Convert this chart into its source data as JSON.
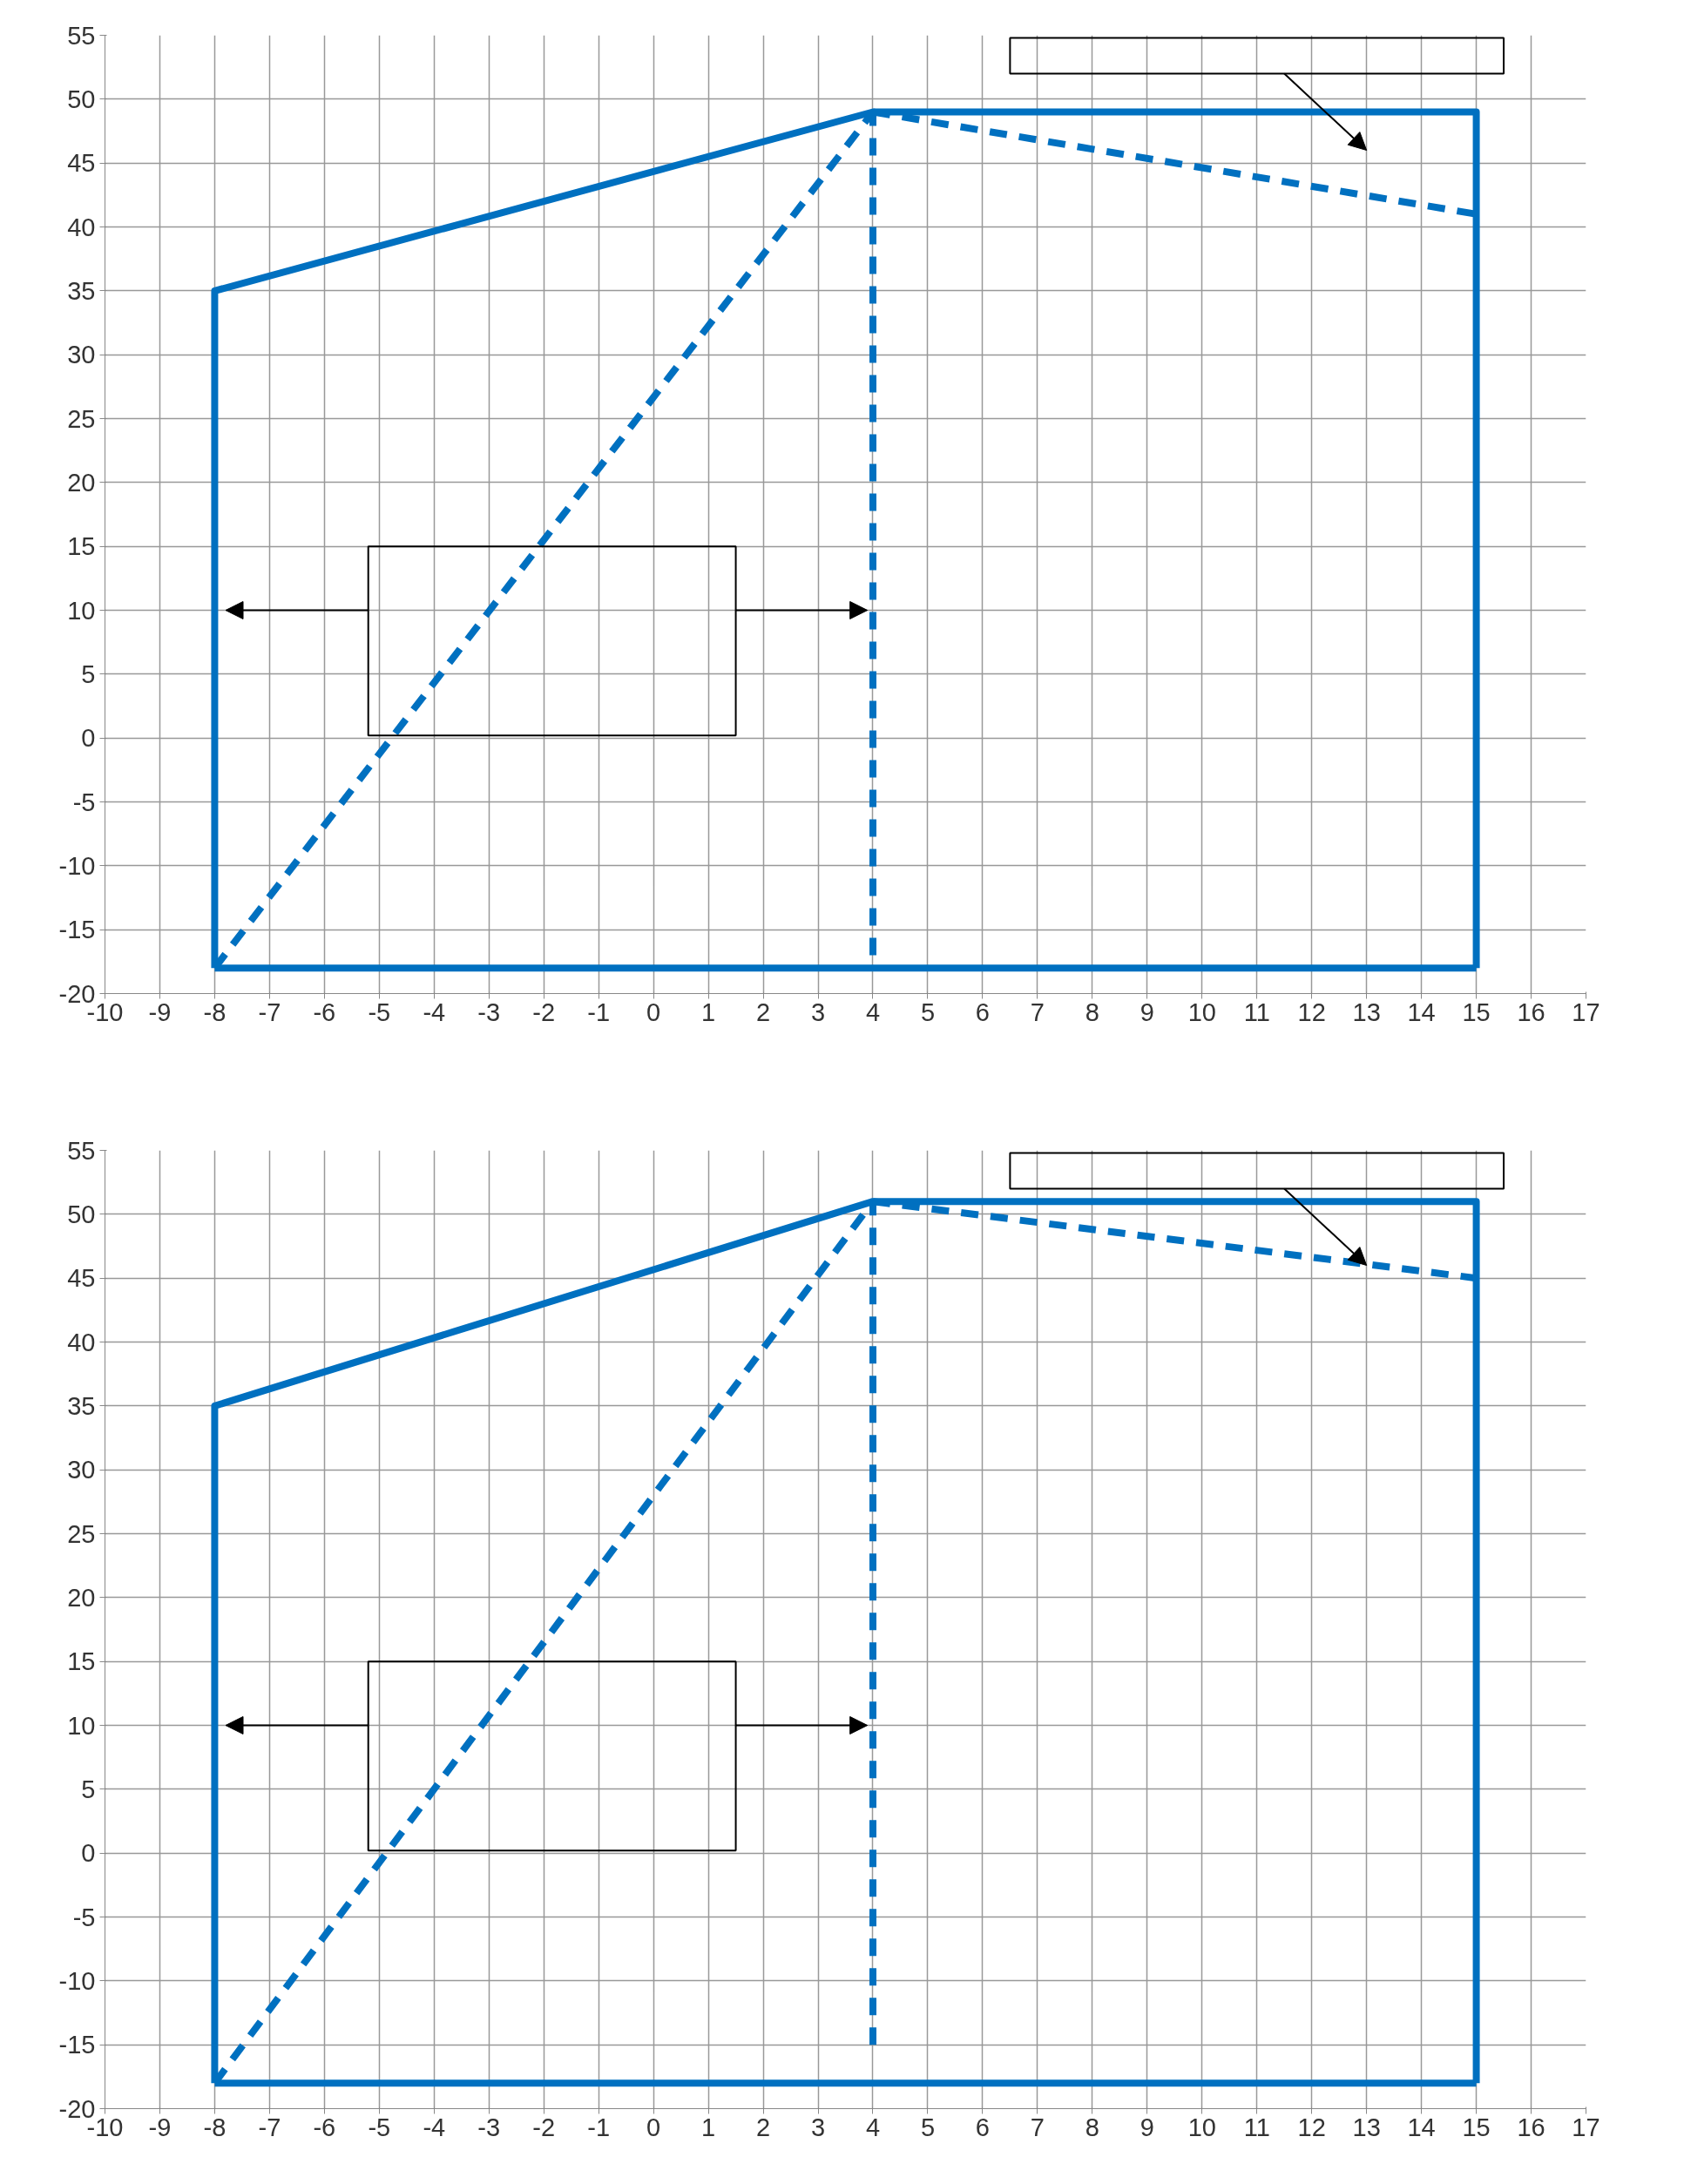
{
  "chart_data": [
    {
      "type": "line",
      "xlim": [
        -10,
        17
      ],
      "ylim": [
        -20,
        55
      ],
      "xticks": [
        -10,
        -9,
        -8,
        -7,
        -6,
        -5,
        -4,
        -3,
        -2,
        -1,
        0,
        1,
        2,
        3,
        4,
        5,
        6,
        7,
        8,
        9,
        10,
        11,
        12,
        13,
        14,
        15,
        16,
        17
      ],
      "yticks": [
        -20,
        -15,
        -10,
        -5,
        0,
        5,
        10,
        15,
        20,
        25,
        30,
        35,
        40,
        45,
        50,
        55
      ],
      "grid": true,
      "series": [
        {
          "color": "#0070c0",
          "line_style": "solid",
          "x": [
            -8,
            -8,
            4,
            15,
            15
          ],
          "values": [
            -18,
            35,
            49,
            49,
            -18
          ]
        },
        {
          "color": "#0070c0",
          "line_style": "solid",
          "x": [
            -8,
            15
          ],
          "values": [
            -18,
            -18
          ]
        },
        {
          "color": "#0070c0",
          "line_style": "dashed",
          "x": [
            -8,
            4
          ],
          "values": [
            -18,
            49
          ]
        },
        {
          "color": "#0070c0",
          "line_style": "dashed",
          "x": [
            4,
            4
          ],
          "values": [
            -17,
            49
          ]
        },
        {
          "color": "#0070c0",
          "line_style": "dashed",
          "x": [
            4,
            15
          ],
          "values": [
            49,
            41
          ]
        }
      ]
    },
    {
      "type": "line",
      "xlim": [
        -10,
        17
      ],
      "ylim": [
        -20,
        55
      ],
      "xticks": [
        -10,
        -9,
        -8,
        -7,
        -6,
        -5,
        -4,
        -3,
        -2,
        -1,
        0,
        1,
        2,
        3,
        4,
        5,
        6,
        7,
        8,
        9,
        10,
        11,
        12,
        13,
        14,
        15,
        16,
        17
      ],
      "yticks": [
        -20,
        -15,
        -10,
        -5,
        0,
        5,
        10,
        15,
        20,
        25,
        30,
        35,
        40,
        45,
        50,
        55
      ],
      "grid": true,
      "series": [
        {
          "color": "#0070c0",
          "line_style": "solid",
          "x": [
            -8,
            -8,
            4,
            15,
            15
          ],
          "values": [
            -18,
            35,
            51,
            51,
            -18
          ]
        },
        {
          "color": "#0070c0",
          "line_style": "solid",
          "x": [
            -8,
            15
          ],
          "values": [
            -18,
            -18
          ]
        },
        {
          "color": "#0070c0",
          "line_style": "dashed",
          "x": [
            -8,
            4
          ],
          "values": [
            -18,
            51
          ]
        },
        {
          "color": "#0070c0",
          "line_style": "dashed",
          "x": [
            4,
            4
          ],
          "values": [
            -15,
            51
          ]
        },
        {
          "color": "#0070c0",
          "line_style": "dashed",
          "x": [
            4,
            15
          ],
          "values": [
            51,
            45
          ]
        }
      ]
    }
  ]
}
